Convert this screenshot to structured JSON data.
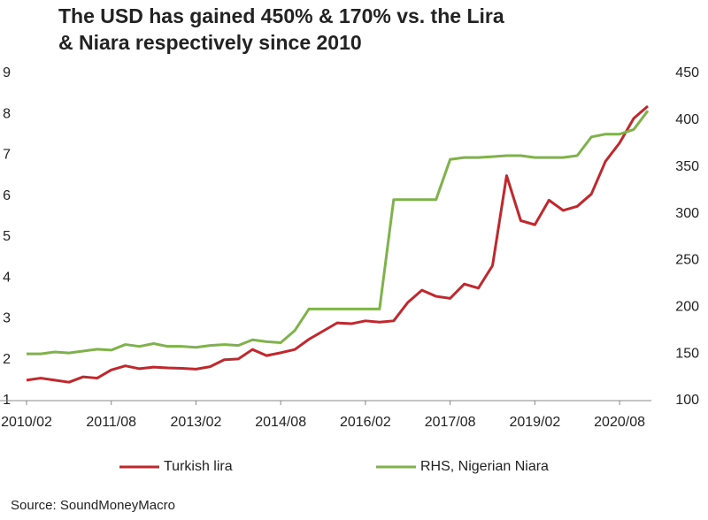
{
  "chart_data": {
    "type": "line",
    "title": [
      "The USD has gained 450% & 170% vs. the Lira",
      "& Niara respectively since 2010"
    ],
    "source": "Source: SoundMoneyMacro",
    "categories": [
      "2010/02",
      null,
      null,
      null,
      null,
      null,
      "2011/08",
      null,
      null,
      null,
      null,
      null,
      "2013/02",
      null,
      null,
      null,
      null,
      null,
      "2014/08",
      null,
      null,
      null,
      null,
      null,
      "2016/02",
      null,
      null,
      null,
      null,
      null,
      "2017/08",
      null,
      null,
      null,
      null,
      null,
      "2019/02",
      null,
      null,
      null,
      null,
      null,
      "2020/08",
      null,
      null
    ],
    "series": [
      {
        "name": "Turkish lira",
        "color": "#c0282d",
        "axis": "y",
        "values": [
          1.5,
          1.55,
          1.5,
          1.45,
          1.58,
          1.55,
          1.75,
          1.85,
          1.78,
          1.82,
          1.8,
          1.79,
          1.77,
          1.83,
          2.0,
          2.02,
          2.25,
          2.1,
          2.17,
          2.25,
          2.5,
          2.7,
          2.9,
          2.88,
          2.95,
          2.92,
          2.95,
          3.4,
          3.7,
          3.55,
          3.5,
          3.85,
          3.75,
          4.3,
          6.5,
          5.4,
          5.3,
          5.9,
          5.65,
          5.75,
          6.05,
          6.85,
          7.3,
          7.9,
          8.2
        ]
      },
      {
        "name": "RHS, Nigerian Niara",
        "color": "#7fb24a",
        "axis": "y2",
        "values": [
          150,
          150,
          152,
          151,
          153,
          155,
          154,
          160,
          158,
          161,
          158,
          158,
          157,
          159,
          160,
          159,
          165,
          163,
          162,
          175,
          198,
          198,
          198,
          198,
          198,
          198,
          315,
          315,
          315,
          315,
          358,
          360,
          360,
          361,
          362,
          362,
          360,
          360,
          360,
          362,
          382,
          385,
          385,
          390,
          410
        ]
      }
    ],
    "ylim": [
      1,
      9
    ],
    "yticks": [
      1,
      2,
      3,
      4,
      5,
      6,
      7,
      8,
      9
    ],
    "y2lim": [
      100,
      450
    ],
    "y2ticks": [
      100,
      150,
      200,
      250,
      300,
      350,
      400,
      450
    ],
    "legend": "bottom"
  }
}
